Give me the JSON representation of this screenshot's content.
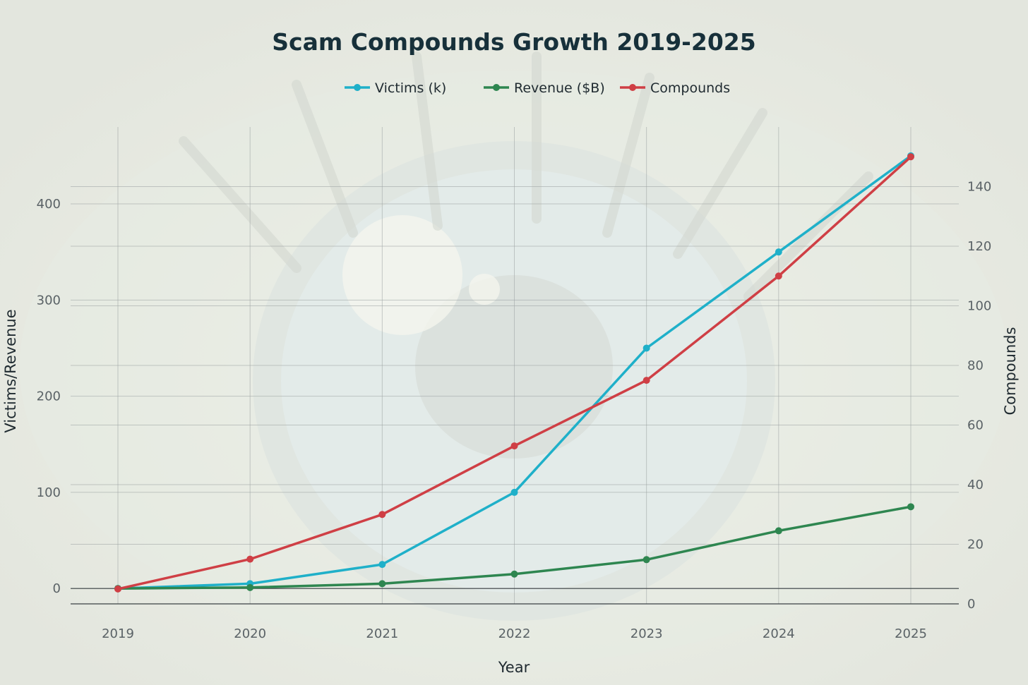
{
  "chart_data": {
    "type": "line",
    "title": "Scam Compounds Growth 2019-2025",
    "xlabel": "Year",
    "ylabel": "Victims/Revenue",
    "y2label": "Compounds",
    "categories": [
      "2019",
      "2020",
      "2021",
      "2022",
      "2023",
      "2024",
      "2025"
    ],
    "ylim": [
      -16,
      480
    ],
    "y_ticks": [
      0,
      100,
      200,
      300,
      400
    ],
    "y2lim": [
      0,
      160
    ],
    "y2_ticks": [
      0,
      20,
      40,
      60,
      80,
      100,
      120,
      140
    ],
    "legend_position": "top-center",
    "grid": true,
    "series": [
      {
        "name": "Victims (k)",
        "axis": "left",
        "color": "#1fb0c9",
        "values": [
          0,
          5,
          25,
          100,
          250,
          350,
          450
        ]
      },
      {
        "name": "Revenue ($B)",
        "axis": "left",
        "color": "#2e8650",
        "values": [
          0,
          1,
          5,
          15,
          30,
          60,
          85
        ]
      },
      {
        "name": "Compounds",
        "axis": "right",
        "color": "#cf3f45",
        "values": [
          5,
          15,
          30,
          53,
          75,
          110,
          150
        ]
      }
    ]
  }
}
